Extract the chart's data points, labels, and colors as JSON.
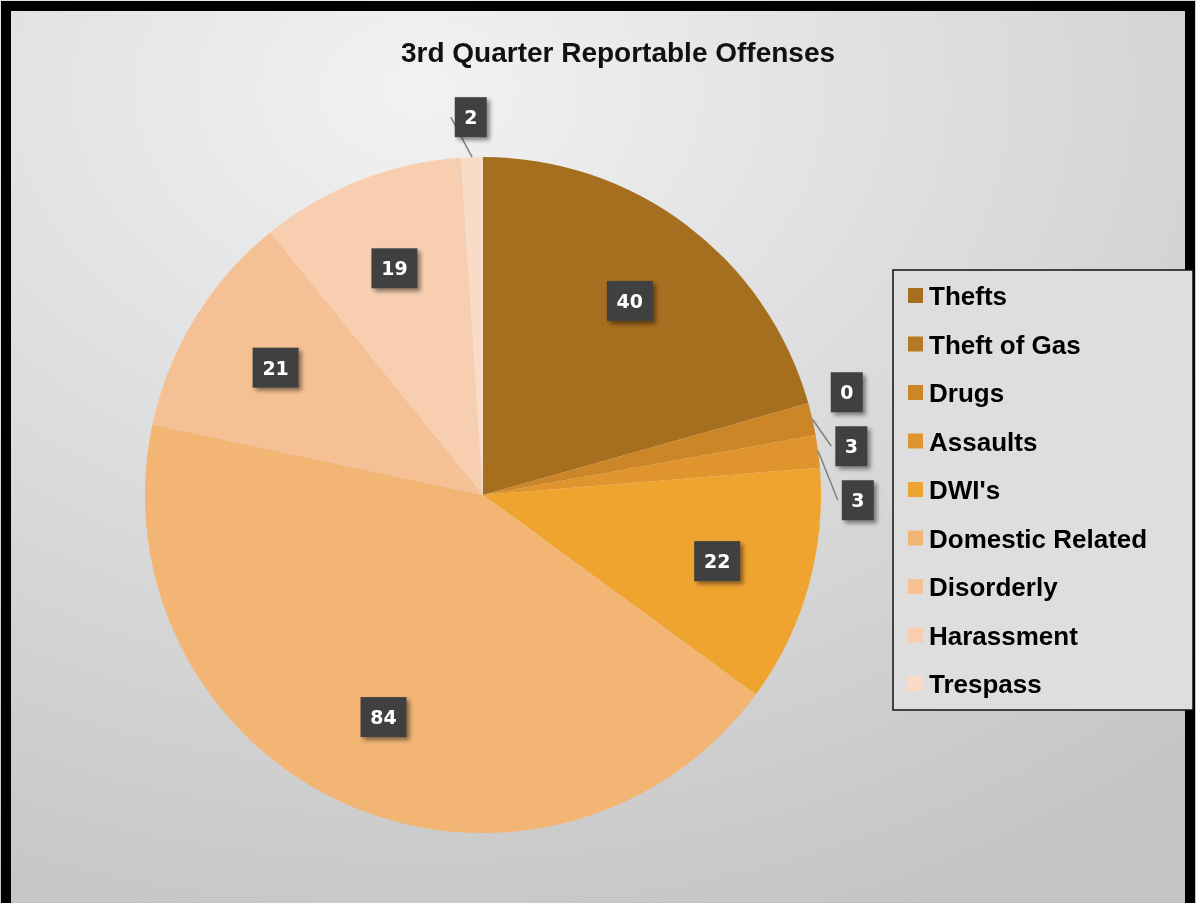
{
  "chart_data": {
    "type": "pie",
    "title": "3rd Quarter Reportable Offenses",
    "categories": [
      "Thefts",
      "Theft of Gas",
      "Drugs",
      "Assaults",
      "DWI's",
      "Domestic Related",
      "Disorderly",
      "Harassment",
      "Trespass"
    ],
    "values": [
      40,
      0,
      3,
      3,
      22,
      84,
      21,
      19,
      2
    ],
    "colors": [
      "#a66e1f",
      "#b47a24",
      "#cc8628",
      "#e0942e",
      "#f0a430",
      "#f2b574",
      "#f5c194",
      "#f7cfb0",
      "#f9dcc8"
    ],
    "value_labels": [
      "40",
      "0",
      "3",
      "3",
      "22",
      "84",
      "21",
      "19",
      "2"
    ],
    "legend": "right"
  }
}
